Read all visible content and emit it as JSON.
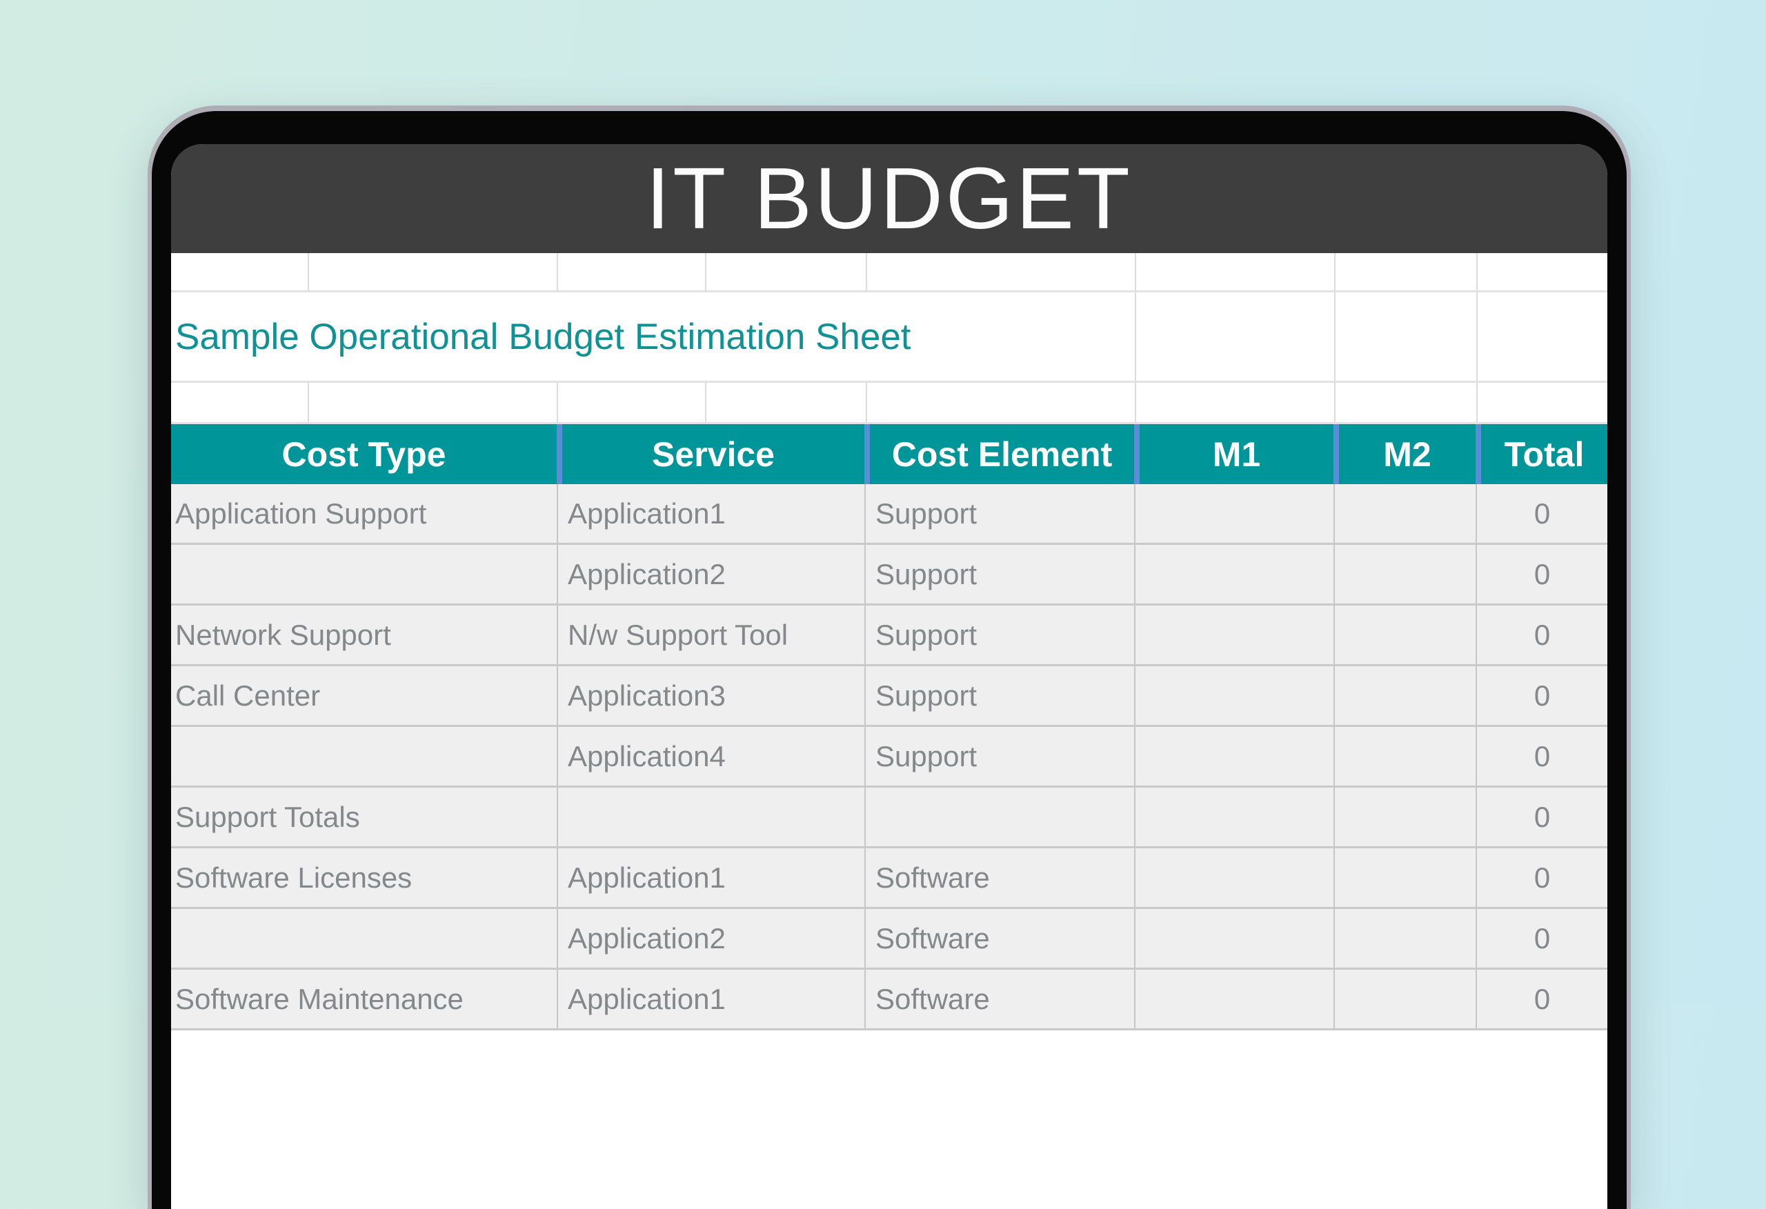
{
  "title_bar": {
    "title": "IT BUDGET"
  },
  "sheet": {
    "subtitle": "Sample Operational Budget Estimation Sheet",
    "columns": [
      "Cost Type",
      "Service",
      "Cost Element",
      "M1",
      "M2",
      "Total"
    ],
    "rows": [
      {
        "cells": [
          "Application Support",
          "Application1",
          "Support",
          "",
          "",
          "0"
        ]
      },
      {
        "cells": [
          "",
          "Application2",
          "Support",
          "",
          "",
          "0"
        ]
      },
      {
        "cells": [
          "Network Support",
          "N/w Support Tool",
          "Support",
          "",
          "",
          "0"
        ]
      },
      {
        "cells": [
          "Call Center",
          "Application3",
          "Support",
          "",
          "",
          "0"
        ]
      },
      {
        "cells": [
          "",
          "Application4",
          "Support",
          "",
          "",
          "0"
        ]
      },
      {
        "cells": [
          "Support Totals",
          "",
          "",
          "",
          "",
          "0"
        ]
      },
      {
        "cells": [
          "Software Licenses",
          "Application1",
          "Software",
          "",
          "",
          "0"
        ]
      },
      {
        "cells": [
          "",
          "Application2",
          "Software",
          "",
          "",
          "0"
        ]
      },
      {
        "cells": [
          "Software Maintenance",
          "Application1",
          "Software",
          "",
          "",
          "0"
        ]
      }
    ]
  },
  "colors": {
    "header_bg": "#009699",
    "header_divider": "#5b8dd9",
    "accent_teal": "#0f9195",
    "titlebar_bg": "#3e3e3e",
    "cell_bg": "#efefef",
    "background_left": "#d3ece3",
    "background_right": "#c8e9f1"
  }
}
